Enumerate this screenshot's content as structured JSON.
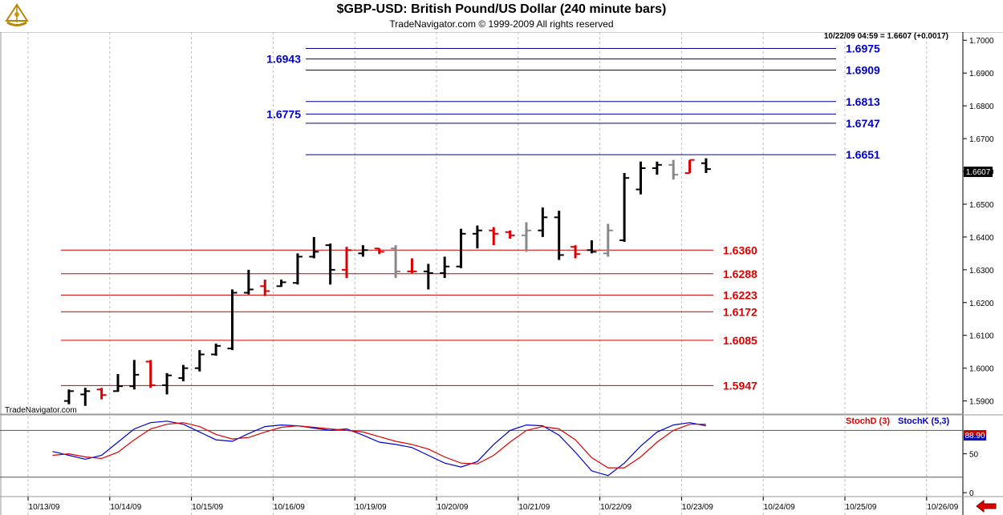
{
  "header": {
    "title": "$GBP-USD:  British Pound/US Dollar  (240 minute bars)",
    "subtitle": "TradeNavigator.com © 1999-2009 All rights reserved"
  },
  "watermark": "TradeNavigator.com",
  "readout": "10/22/09 04:59 = 1.6607 (+0.0017)",
  "last_price_label": "1.6607",
  "chart_data": [
    {
      "type": "ohlc",
      "title": "$GBP-USD:  British Pound/US Dollar  (240 minute bars)",
      "y_ticks": [
        "1.7000",
        "1.6900",
        "1.6800",
        "1.6700",
        "1.6600",
        "1.6500",
        "1.6400",
        "1.6300",
        "1.6200",
        "1.6100",
        "1.6000",
        "1.5900"
      ],
      "x_ticks": [
        "10/13/09",
        "10/14/09",
        "10/15/09",
        "10/16/09",
        "10/19/09",
        "10/20/09",
        "10/21/09",
        "10/22/09",
        "10/23/09",
        "10/24/09",
        "10/25/09",
        "10/26/09"
      ],
      "ylim": [
        1.586,
        1.7025
      ],
      "grid_vertical": true,
      "colors": {
        "up": "#000000",
        "down": "#dd0000",
        "neutral": "#888888"
      },
      "bars": [
        {
          "d": 0.5,
          "o": 1.59,
          "h": 1.5935,
          "l": 1.589,
          "c": 1.593,
          "col": "up"
        },
        {
          "d": 0.7,
          "o": 1.592,
          "h": 1.594,
          "l": 1.5885,
          "c": 1.593,
          "col": "up"
        },
        {
          "d": 0.9,
          "o": 1.5935,
          "h": 1.594,
          "l": 1.5905,
          "c": 1.5918,
          "col": "down"
        },
        {
          "d": 1.1,
          "o": 1.593,
          "h": 1.5982,
          "l": 1.5928,
          "c": 1.5945,
          "col": "up"
        },
        {
          "d": 1.3,
          "o": 1.5945,
          "h": 1.6025,
          "l": 1.5935,
          "c": 1.598,
          "col": "up"
        },
        {
          "d": 1.5,
          "o": 1.602,
          "h": 1.6025,
          "l": 1.594,
          "c": 1.5948,
          "col": "down"
        },
        {
          "d": 1.7,
          "o": 1.5948,
          "h": 1.5985,
          "l": 1.592,
          "c": 1.5978,
          "col": "up"
        },
        {
          "d": 1.9,
          "o": 1.597,
          "h": 1.601,
          "l": 1.596,
          "c": 1.6,
          "col": "up"
        },
        {
          "d": 2.1,
          "o": 1.6,
          "h": 1.6055,
          "l": 1.599,
          "c": 1.6042,
          "col": "up"
        },
        {
          "d": 2.3,
          "o": 1.6042,
          "h": 1.6075,
          "l": 1.6038,
          "c": 1.6068,
          "col": "up"
        },
        {
          "d": 2.5,
          "o": 1.606,
          "h": 1.624,
          "l": 1.6055,
          "c": 1.623,
          "col": "up"
        },
        {
          "d": 2.7,
          "o": 1.623,
          "h": 1.63,
          "l": 1.6225,
          "c": 1.624,
          "col": "up"
        },
        {
          "d": 2.9,
          "o": 1.625,
          "h": 1.627,
          "l": 1.622,
          "c": 1.6235,
          "col": "down"
        },
        {
          "d": 3.1,
          "o": 1.625,
          "h": 1.627,
          "l": 1.6248,
          "c": 1.6262,
          "col": "up"
        },
        {
          "d": 3.3,
          "o": 1.626,
          "h": 1.635,
          "l": 1.6255,
          "c": 1.634,
          "col": "up"
        },
        {
          "d": 3.5,
          "o": 1.634,
          "h": 1.64,
          "l": 1.6335,
          "c": 1.6355,
          "col": "up"
        },
        {
          "d": 3.7,
          "o": 1.6375,
          "h": 1.638,
          "l": 1.6255,
          "c": 1.63,
          "col": "up"
        },
        {
          "d": 3.9,
          "o": 1.63,
          "h": 1.637,
          "l": 1.6275,
          "c": 1.636,
          "col": "down"
        },
        {
          "d": 4.1,
          "o": 1.635,
          "h": 1.6375,
          "l": 1.634,
          "c": 1.636,
          "col": "up"
        },
        {
          "d": 4.3,
          "o": 1.6365,
          "h": 1.6365,
          "l": 1.6348,
          "c": 1.6355,
          "col": "down"
        },
        {
          "d": 4.5,
          "o": 1.6365,
          "h": 1.6375,
          "l": 1.6275,
          "c": 1.6295,
          "col": "neutral"
        },
        {
          "d": 4.7,
          "o": 1.6295,
          "h": 1.6335,
          "l": 1.629,
          "c": 1.6295,
          "col": "down"
        },
        {
          "d": 4.9,
          "o": 1.6295,
          "h": 1.6318,
          "l": 1.624,
          "c": 1.629,
          "col": "up"
        },
        {
          "d": 5.1,
          "o": 1.629,
          "h": 1.634,
          "l": 1.6275,
          "c": 1.631,
          "col": "up"
        },
        {
          "d": 5.3,
          "o": 1.631,
          "h": 1.6425,
          "l": 1.6305,
          "c": 1.641,
          "col": "up"
        },
        {
          "d": 5.5,
          "o": 1.641,
          "h": 1.6435,
          "l": 1.6365,
          "c": 1.642,
          "col": "up"
        },
        {
          "d": 5.7,
          "o": 1.642,
          "h": 1.643,
          "l": 1.6375,
          "c": 1.641,
          "col": "down"
        },
        {
          "d": 5.9,
          "o": 1.6415,
          "h": 1.642,
          "l": 1.6395,
          "c": 1.6405,
          "col": "down"
        },
        {
          "d": 6.1,
          "o": 1.6405,
          "h": 1.6445,
          "l": 1.6355,
          "c": 1.642,
          "col": "neutral"
        },
        {
          "d": 6.3,
          "o": 1.642,
          "h": 1.649,
          "l": 1.64,
          "c": 1.646,
          "col": "up"
        },
        {
          "d": 6.5,
          "o": 1.646,
          "h": 1.648,
          "l": 1.633,
          "c": 1.6345,
          "col": "up"
        },
        {
          "d": 6.7,
          "o": 1.637,
          "h": 1.6375,
          "l": 1.6335,
          "c": 1.6348,
          "col": "down"
        },
        {
          "d": 6.9,
          "o": 1.636,
          "h": 1.639,
          "l": 1.635,
          "c": 1.6355,
          "col": "up"
        },
        {
          "d": 7.1,
          "o": 1.635,
          "h": 1.644,
          "l": 1.634,
          "c": 1.642,
          "col": "neutral"
        },
        {
          "d": 7.3,
          "o": 1.639,
          "h": 1.6595,
          "l": 1.6385,
          "c": 1.658,
          "col": "up"
        },
        {
          "d": 7.5,
          "o": 1.6545,
          "h": 1.663,
          "l": 1.653,
          "c": 1.661,
          "col": "up"
        },
        {
          "d": 7.7,
          "o": 1.661,
          "h": 1.663,
          "l": 1.659,
          "c": 1.662,
          "col": "up"
        },
        {
          "d": 7.9,
          "o": 1.662,
          "h": 1.6635,
          "l": 1.6575,
          "c": 1.659,
          "col": "neutral"
        },
        {
          "d": 8.1,
          "o": 1.6595,
          "h": 1.6635,
          "l": 1.6595,
          "c": 1.6635,
          "col": "down"
        },
        {
          "d": 8.3,
          "o": 1.6625,
          "h": 1.664,
          "l": 1.6595,
          "c": 1.6607,
          "col": "up"
        }
      ],
      "levels": [
        {
          "label": "1.6975",
          "value": 1.6975,
          "color": "blue",
          "side": "right"
        },
        {
          "label": "1.6943",
          "value": 1.6943,
          "color": "blue",
          "side": "left"
        },
        {
          "label": "1.6909",
          "value": 1.6909,
          "color": "blue",
          "side": "right"
        },
        {
          "label": "1.6813",
          "value": 1.6813,
          "color": "blue",
          "side": "right"
        },
        {
          "label": "1.6775",
          "value": 1.6775,
          "color": "blue",
          "side": "left"
        },
        {
          "label": "1.6747",
          "value": 1.6747,
          "color": "blue",
          "side": "right"
        },
        {
          "label": "1.6651",
          "value": 1.6651,
          "color": "blue",
          "side": "right"
        },
        {
          "label": "1.6360",
          "value": 1.636,
          "color": "red",
          "side": "right"
        },
        {
          "label": "1.6288",
          "value": 1.6288,
          "color": "red",
          "side": "right"
        },
        {
          "label": "1.6223",
          "value": 1.6223,
          "color": "red",
          "side": "right"
        },
        {
          "label": "1.6172",
          "value": 1.6172,
          "color": "red",
          "side": "right"
        },
        {
          "label": "1.6085",
          "value": 1.6085,
          "color": "red",
          "side": "right"
        },
        {
          "label": "1.5947",
          "value": 1.5947,
          "color": "red",
          "side": "right"
        }
      ]
    },
    {
      "type": "line",
      "legend": [
        {
          "name": "StochD (3)",
          "color": "#dd0000"
        },
        {
          "name": "StochK (5,3)",
          "color": "#0000cc"
        }
      ],
      "y_ticks": [
        "50",
        "0"
      ],
      "ylim": [
        -5,
        100
      ],
      "reference_lines": [
        80,
        20
      ],
      "last_value_label": "88.90",
      "x": [
        0.3,
        0.5,
        0.7,
        0.9,
        1.1,
        1.3,
        1.5,
        1.7,
        1.9,
        2.1,
        2.3,
        2.5,
        2.7,
        2.9,
        3.1,
        3.3,
        3.5,
        3.7,
        3.9,
        4.1,
        4.3,
        4.5,
        4.7,
        4.9,
        5.1,
        5.3,
        5.5,
        5.7,
        5.9,
        6.1,
        6.3,
        6.5,
        6.7,
        6.9,
        7.1,
        7.3,
        7.5,
        7.7,
        7.9,
        8.1,
        8.3
      ],
      "series": [
        {
          "name": "StochK (5,3)",
          "values": [
            53,
            48,
            43,
            48,
            65,
            82,
            90,
            92,
            88,
            78,
            68,
            66,
            76,
            85,
            87,
            86,
            83,
            80,
            82,
            74,
            65,
            62,
            58,
            48,
            38,
            33,
            40,
            62,
            80,
            87,
            86,
            74,
            52,
            28,
            22,
            38,
            60,
            78,
            87,
            90,
            86
          ]
        },
        {
          "name": "StochD (3)",
          "values": [
            48,
            50,
            46,
            44,
            52,
            68,
            82,
            88,
            90,
            85,
            75,
            69,
            71,
            78,
            84,
            86,
            84,
            82,
            80,
            78,
            72,
            66,
            62,
            56,
            46,
            38,
            37,
            48,
            65,
            80,
            85,
            82,
            68,
            45,
            32,
            32,
            46,
            65,
            80,
            88,
            88
          ]
        }
      ]
    }
  ]
}
